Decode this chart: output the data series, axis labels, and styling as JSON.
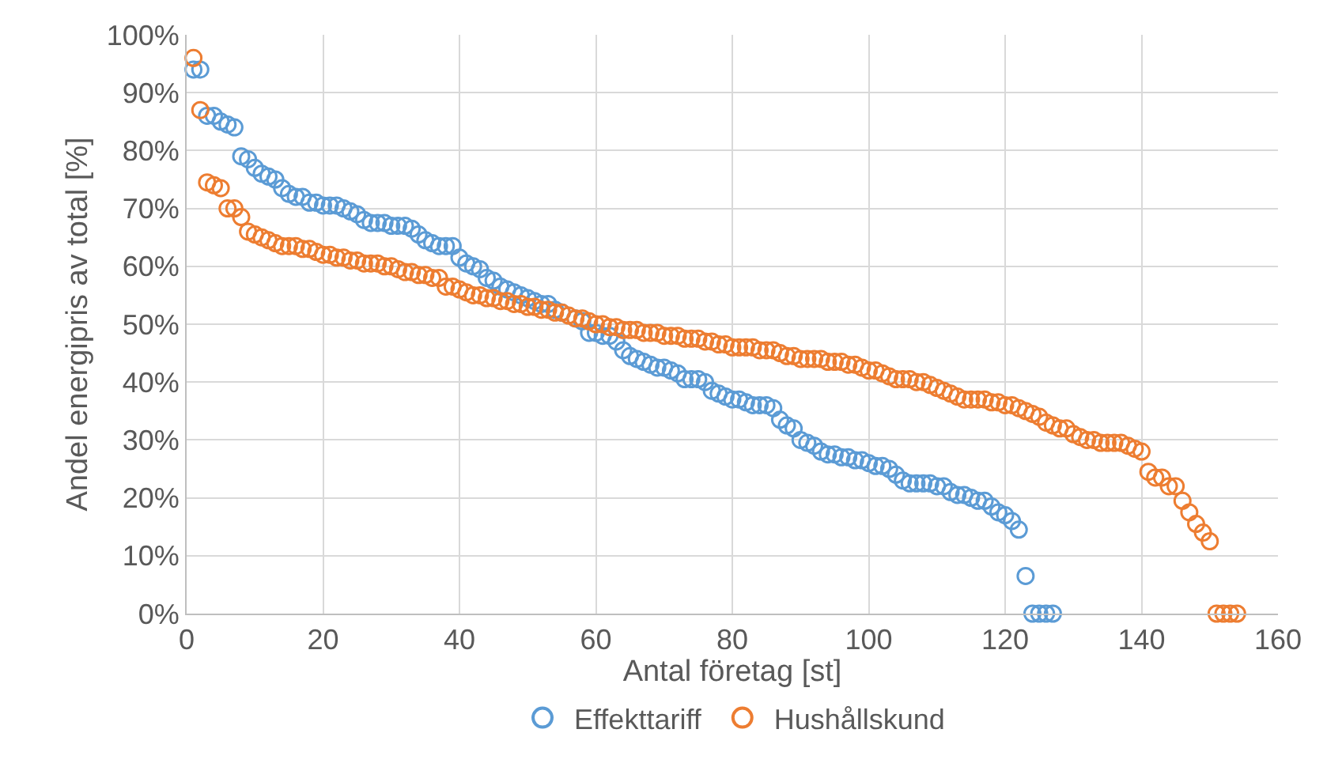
{
  "chart_data": {
    "type": "scatter",
    "xlabel": "Antal företag [st]",
    "ylabel": "Andel energipris av total [%]",
    "xlim": [
      0,
      160
    ],
    "xticks": [
      0,
      20,
      40,
      60,
      80,
      100,
      120,
      140,
      160
    ],
    "ylim": [
      0,
      100
    ],
    "yticks": [
      {
        "value": 0,
        "label": "0%"
      },
      {
        "value": 10,
        "label": "10%"
      },
      {
        "value": 20,
        "label": "20%"
      },
      {
        "value": 30,
        "label": "30%"
      },
      {
        "value": 40,
        "label": "40%"
      },
      {
        "value": 50,
        "label": "50%"
      },
      {
        "value": 60,
        "label": "60%"
      },
      {
        "value": 70,
        "label": "70%"
      },
      {
        "value": 80,
        "label": "80%"
      },
      {
        "value": 90,
        "label": "90%"
      },
      {
        "value": 100,
        "label": "100%"
      }
    ],
    "grid": true,
    "legend": "bottom",
    "marker": "circle",
    "series": [
      {
        "name": "Effekttariff",
        "color": "#5b9bd5",
        "x": [
          1,
          2,
          3,
          4,
          5,
          6,
          7,
          8,
          9,
          10,
          11,
          12,
          13,
          14,
          15,
          16,
          17,
          18,
          19,
          20,
          21,
          22,
          23,
          24,
          25,
          26,
          27,
          28,
          29,
          30,
          31,
          32,
          33,
          34,
          35,
          36,
          37,
          38,
          39,
          40,
          41,
          42,
          43,
          44,
          45,
          46,
          47,
          48,
          49,
          50,
          51,
          52,
          53,
          54,
          55,
          56,
          57,
          58,
          59,
          60,
          61,
          62,
          63,
          64,
          65,
          66,
          67,
          68,
          69,
          70,
          71,
          72,
          73,
          74,
          75,
          76,
          77,
          78,
          79,
          80,
          81,
          82,
          83,
          84,
          85,
          86,
          87,
          88,
          89,
          90,
          91,
          92,
          93,
          94,
          95,
          96,
          97,
          98,
          99,
          100,
          101,
          102,
          103,
          104,
          105,
          106,
          107,
          108,
          109,
          110,
          111,
          112,
          113,
          114,
          115,
          116,
          117,
          118,
          119,
          120,
          121,
          122,
          123,
          124,
          125,
          126,
          127
        ],
        "values": [
          94,
          94,
          86,
          86,
          85,
          84.5,
          84,
          79,
          78.5,
          77,
          76,
          75.5,
          75,
          73.5,
          72.5,
          72,
          72,
          71,
          71,
          70.5,
          70.5,
          70.5,
          70,
          69.5,
          69,
          68,
          67.5,
          67.5,
          67.5,
          67,
          67,
          67,
          66.5,
          65.5,
          64.5,
          64,
          63.5,
          63.5,
          63.5,
          61.5,
          60.5,
          60,
          59.5,
          58,
          57.5,
          56.5,
          56,
          55.5,
          55,
          54.5,
          54,
          53.5,
          53.5,
          52.5,
          52,
          null,
          51,
          50.5,
          48.5,
          48.5,
          48,
          48,
          47,
          45.5,
          44.5,
          44,
          43.5,
          43,
          42.5,
          42.5,
          42,
          41.5,
          40.5,
          40.5,
          40.5,
          40,
          38.5,
          38,
          37.5,
          37,
          37,
          36.5,
          36,
          36,
          36,
          35.5,
          33.5,
          32.5,
          32,
          30,
          29.5,
          29,
          28,
          27.5,
          27.5,
          27,
          27,
          26.5,
          26.5,
          26,
          25.5,
          25.5,
          25,
          24,
          23,
          22.5,
          22.5,
          22.5,
          22.5,
          22,
          22,
          21,
          20.5,
          20.5,
          20,
          19.5,
          19.5,
          18.5,
          17.5,
          17,
          16,
          14.5,
          6.5,
          0,
          0,
          0,
          0
        ]
      },
      {
        "name": "Hushållskund",
        "color": "#ed7d31",
        "x": [
          1,
          2,
          3,
          4,
          5,
          6,
          7,
          8,
          9,
          10,
          11,
          12,
          13,
          14,
          15,
          16,
          17,
          18,
          19,
          20,
          21,
          22,
          23,
          24,
          25,
          26,
          27,
          28,
          29,
          30,
          31,
          32,
          33,
          34,
          35,
          36,
          37,
          38,
          39,
          40,
          41,
          42,
          43,
          44,
          45,
          46,
          47,
          48,
          49,
          50,
          51,
          52,
          53,
          54,
          55,
          56,
          57,
          58,
          59,
          60,
          61,
          62,
          63,
          64,
          65,
          66,
          67,
          68,
          69,
          70,
          71,
          72,
          73,
          74,
          75,
          76,
          77,
          78,
          79,
          80,
          81,
          82,
          83,
          84,
          85,
          86,
          87,
          88,
          89,
          90,
          91,
          92,
          93,
          94,
          95,
          96,
          97,
          98,
          99,
          100,
          101,
          102,
          103,
          104,
          105,
          106,
          107,
          108,
          109,
          110,
          111,
          112,
          113,
          114,
          115,
          116,
          117,
          118,
          119,
          120,
          121,
          122,
          123,
          124,
          125,
          126,
          127,
          128,
          129,
          130,
          131,
          132,
          133,
          134,
          135,
          136,
          137,
          138,
          139,
          140,
          141,
          142,
          143,
          144,
          145,
          146,
          147,
          148,
          149,
          150,
          151,
          152,
          153,
          154
        ],
        "values": [
          96,
          87,
          74.5,
          74,
          73.5,
          70,
          70,
          68.5,
          66,
          65.5,
          65,
          64.5,
          64,
          63.5,
          63.5,
          63.5,
          63,
          63,
          62.5,
          62,
          62,
          61.5,
          61.5,
          61,
          61,
          60.5,
          60.5,
          60.5,
          60,
          60,
          59.5,
          59,
          59,
          58.5,
          58.5,
          58,
          58,
          56.5,
          56.5,
          56,
          55.5,
          55,
          55,
          54.5,
          54.5,
          54,
          54,
          53.5,
          53.5,
          53,
          53,
          52.5,
          52.5,
          52,
          52,
          51.5,
          51,
          51,
          50.5,
          50,
          50,
          49.5,
          49.5,
          49,
          49,
          49,
          48.5,
          48.5,
          48.5,
          48,
          48,
          48,
          47.5,
          47.5,
          47.5,
          47,
          47,
          46.5,
          46.5,
          46,
          46,
          46,
          46,
          45.5,
          45.5,
          45.5,
          45,
          44.5,
          44.5,
          44,
          44,
          44,
          44,
          43.5,
          43.5,
          43.5,
          43,
          43,
          42.5,
          42,
          42,
          41.5,
          41,
          40.5,
          40.5,
          40.5,
          40,
          40,
          39.5,
          39,
          38.5,
          38,
          37.5,
          37,
          37,
          37,
          37,
          36.5,
          36.5,
          36,
          36,
          35.5,
          35,
          34.5,
          34,
          33,
          32.5,
          32,
          32,
          31,
          30.5,
          30,
          30,
          29.5,
          29.5,
          29.5,
          29.5,
          29,
          28.5,
          28,
          24.5,
          23.5,
          23.5,
          22,
          22,
          19.5,
          17.5,
          15.5,
          14,
          12.5,
          0,
          0,
          0,
          0
        ]
      }
    ]
  }
}
